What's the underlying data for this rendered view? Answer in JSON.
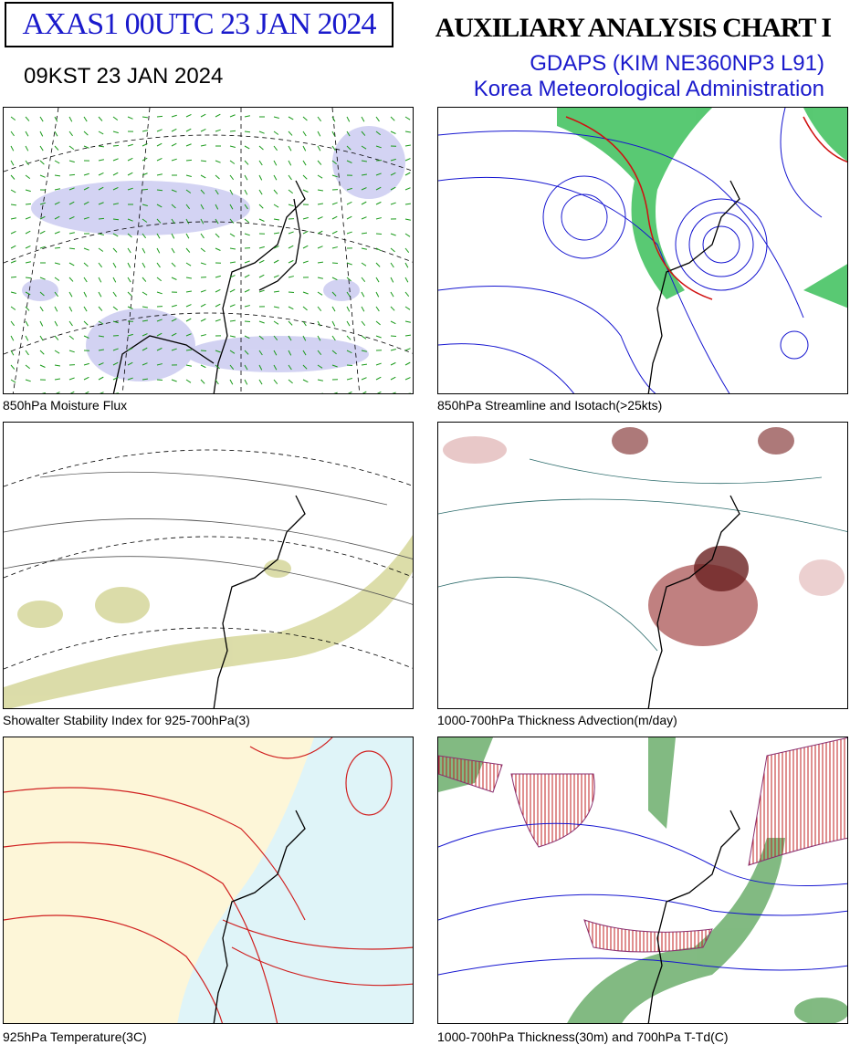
{
  "header": {
    "product": "AXAS1  00UTC 23 JAN 2024",
    "time_kst": "09KST 23 JAN 2024",
    "title": "AUXILIARY ANALYSIS CHART  I",
    "model": "GDAPS (KIM NE360NP3 L91)",
    "agency": "Korea Meteorological Administration"
  },
  "panels": [
    {
      "caption": "850hPa Moisture Flux"
    },
    {
      "caption": "850hPa Streamline and Isotach(>25kts)"
    },
    {
      "caption": "Showalter Stability Index for 925-700hPa(3)"
    },
    {
      "caption": "1000-700hPa Thickness Advection(m/day)"
    },
    {
      "caption": "925hPa Temperature(3C)"
    },
    {
      "caption": "1000-700hPa Thickness(30m) and 700hPa T-Td(C)"
    }
  ]
}
